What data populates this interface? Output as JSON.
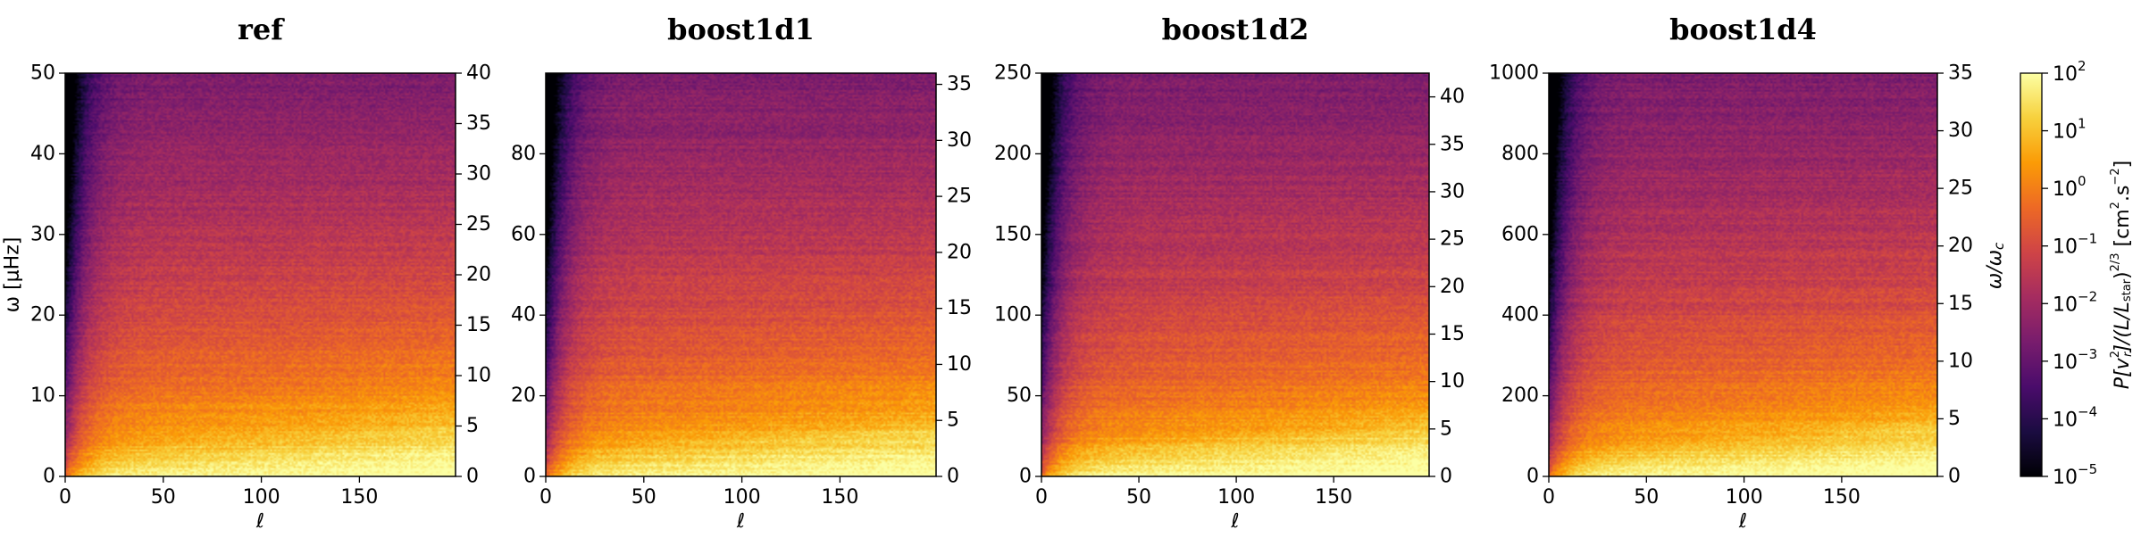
{
  "colormap": {
    "name": "inferno",
    "stops": [
      "#000004",
      "#1b0c41",
      "#4a0c6b",
      "#781c6d",
      "#a52c60",
      "#cf4446",
      "#ed6925",
      "#fb9b06",
      "#f7d13d",
      "#fcffa4"
    ]
  },
  "colorbar": {
    "label": "P[v_r^2]/(L/L_star)^2/3 [cm^2.s^-2]",
    "label_parts": {
      "p": "P[",
      "v": "v",
      "sup2": "2",
      "sub": "r",
      "mid": "]/(L/L",
      "star": "star",
      "close": ")",
      "exp": "2/3",
      "unit_open": " [cm",
      "unit_sup1": "2",
      "unit_mid": ".s",
      "unit_sup2": "−2",
      "unit_close": "]"
    },
    "scale": "log",
    "range": [
      1e-05,
      100.0
    ],
    "ticks": [
      {
        "base": "10",
        "exp": "2"
      },
      {
        "base": "10",
        "exp": "1"
      },
      {
        "base": "10",
        "exp": "0"
      },
      {
        "base": "10",
        "exp": "−1"
      },
      {
        "base": "10",
        "exp": "−2"
      },
      {
        "base": "10",
        "exp": "−3"
      },
      {
        "base": "10",
        "exp": "−4"
      },
      {
        "base": "10",
        "exp": "−5"
      }
    ]
  },
  "chart_data": [
    {
      "type": "heatmap",
      "title": "ref",
      "xlabel": "ℓ",
      "ylabel": "ω [μHz]",
      "ylabel_right": "",
      "xlim": [
        0,
        199
      ],
      "ylim": [
        0,
        50
      ],
      "ylim_right": [
        0,
        40
      ],
      "xticks": [
        "0",
        "50",
        "100",
        "150"
      ],
      "xtick_values": [
        0,
        50,
        100,
        150
      ],
      "yticks": [
        "0",
        "10",
        "20",
        "30",
        "40",
        "50"
      ],
      "ytick_values": [
        0,
        10,
        20,
        30,
        40,
        50
      ],
      "yticks_right": [
        "0",
        "5",
        "10",
        "15",
        "20",
        "25",
        "30",
        "35",
        "40"
      ],
      "ytick_values_right": [
        0,
        5,
        10,
        15,
        20,
        25,
        30,
        35,
        40
      ]
    },
    {
      "type": "heatmap",
      "title": "boost1d1",
      "xlabel": "ℓ",
      "ylabel": "",
      "ylabel_right": "",
      "xlim": [
        0,
        199
      ],
      "ylim": [
        0,
        100
      ],
      "ylim_right": [
        0,
        36
      ],
      "xticks": [
        "0",
        "50",
        "100",
        "150"
      ],
      "xtick_values": [
        0,
        50,
        100,
        150
      ],
      "yticks": [
        "0",
        "20",
        "40",
        "60",
        "80"
      ],
      "ytick_values": [
        0,
        20,
        40,
        60,
        80
      ],
      "yticks_right": [
        "0",
        "5",
        "10",
        "15",
        "20",
        "25",
        "30",
        "35"
      ],
      "ytick_values_right": [
        0,
        5,
        10,
        15,
        20,
        25,
        30,
        35
      ]
    },
    {
      "type": "heatmap",
      "title": "boost1d2",
      "xlabel": "ℓ",
      "ylabel": "",
      "ylabel_right": "",
      "xlim": [
        0,
        199
      ],
      "ylim": [
        0,
        250
      ],
      "ylim_right": [
        0,
        42.5
      ],
      "xticks": [
        "0",
        "50",
        "100",
        "150"
      ],
      "xtick_values": [
        0,
        50,
        100,
        150
      ],
      "yticks": [
        "0",
        "50",
        "100",
        "150",
        "200",
        "250"
      ],
      "ytick_values": [
        0,
        50,
        100,
        150,
        200,
        250
      ],
      "yticks_right": [
        "0",
        "5",
        "10",
        "15",
        "20",
        "25",
        "30",
        "35",
        "40"
      ],
      "ytick_values_right": [
        0,
        5,
        10,
        15,
        20,
        25,
        30,
        35,
        40
      ]
    },
    {
      "type": "heatmap",
      "title": "boost1d4",
      "xlabel": "ℓ",
      "ylabel": "",
      "ylabel_right": "ω/ω_c",
      "ylabel_right_parts": {
        "a": "ω/ω",
        "sub": "c"
      },
      "xlim": [
        0,
        199
      ],
      "ylim": [
        0,
        1000
      ],
      "ylim_right": [
        0,
        35
      ],
      "xticks": [
        "0",
        "50",
        "100",
        "150"
      ],
      "xtick_values": [
        0,
        50,
        100,
        150
      ],
      "yticks": [
        "0",
        "200",
        "400",
        "600",
        "800",
        "1000"
      ],
      "ytick_values": [
        0,
        200,
        400,
        600,
        800,
        1000
      ],
      "yticks_right": [
        "0",
        "5",
        "10",
        "15",
        "20",
        "25",
        "30",
        "35"
      ],
      "ytick_values_right": [
        0,
        5,
        10,
        15,
        20,
        25,
        30,
        35
      ]
    }
  ]
}
